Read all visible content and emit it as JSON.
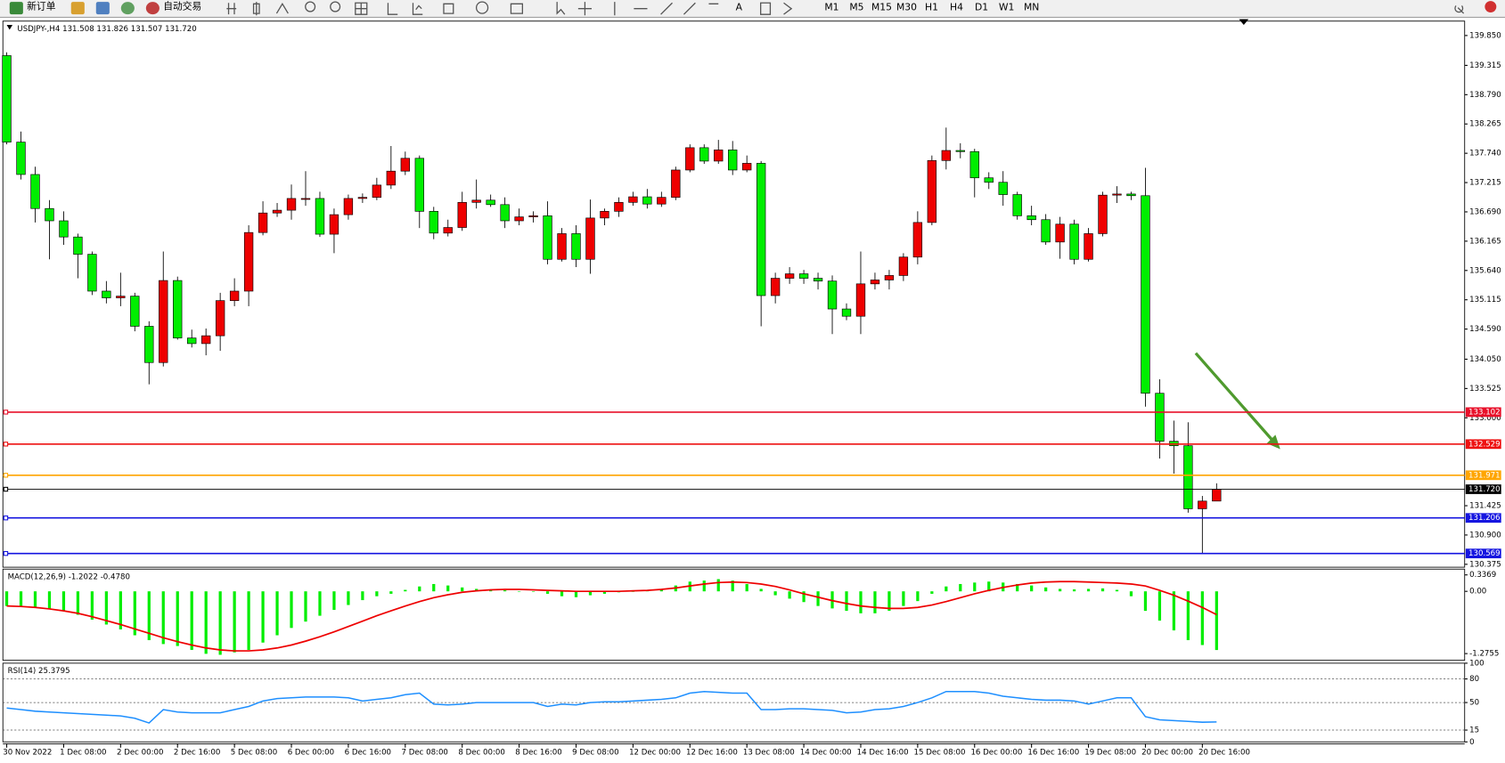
{
  "toolbar": {
    "new_order": "新订单",
    "auto_trading": "自动交易",
    "timeframes": [
      "M1",
      "M5",
      "M15",
      "M30",
      "H1",
      "H4",
      "D1",
      "W1",
      "MN"
    ]
  },
  "chart_data": [
    {
      "type": "candlestick",
      "title": "USDJPY-,H4  131.508 131.826 131.507 131.720",
      "categories": [
        "30 Nov 2022",
        null,
        null,
        null,
        "1 Dec 08:00",
        null,
        null,
        null,
        "2 Dec 00:00",
        null,
        null,
        null,
        "2 Dec 16:00",
        null,
        null,
        null,
        "5 Dec 08:00",
        null,
        null,
        null,
        "6 Dec 00:00",
        null,
        null,
        null,
        "6 Dec 16:00",
        null,
        null,
        null,
        "7 Dec 08:00",
        null,
        null,
        null,
        "8 Dec 00:00",
        null,
        null,
        null,
        "8 Dec 16:00",
        null,
        null,
        null,
        "9 Dec 08:00",
        null,
        null,
        null,
        "12 Dec 00:00",
        null,
        null,
        null,
        "12 Dec 16:00",
        null,
        null,
        null,
        "13 Dec 08:00",
        null,
        null,
        null,
        "14 Dec 00:00",
        null,
        null,
        null,
        "14 Dec 16:00",
        null,
        null,
        null,
        "15 Dec 08:00",
        null,
        null,
        null,
        "16 Dec 00:00",
        null,
        null,
        null,
        "16 Dec 16:00",
        null,
        null,
        null,
        "19 Dec 08:00",
        null,
        null,
        null,
        "20 Dec 00:00",
        null,
        null,
        null,
        "20 Dec 16:00",
        null
      ],
      "open": [
        139.49,
        137.94,
        137.36,
        136.75,
        136.53,
        136.24,
        135.93,
        135.27,
        135.15,
        135.18,
        134.64,
        133.99,
        135.46,
        134.43,
        134.33,
        134.47,
        135.1,
        135.27,
        136.32,
        136.67,
        136.72,
        136.93,
        136.93,
        136.29,
        136.64,
        136.93,
        136.95,
        137.17,
        137.42,
        137.65,
        136.7,
        136.31,
        136.41,
        136.86,
        136.9,
        136.82,
        136.53,
        136.6,
        136.62,
        135.84,
        136.3,
        135.84,
        136.58,
        136.7,
        136.86,
        136.96,
        136.83,
        136.95,
        137.44,
        137.84,
        137.6,
        137.8,
        137.44,
        137.56,
        135.19,
        135.5,
        135.58,
        135.5,
        135.45,
        134.95,
        134.82,
        135.4,
        135.47,
        135.55,
        135.88,
        136.5,
        137.61,
        137.79,
        137.77,
        137.3,
        137.22,
        137.0,
        136.62,
        136.55,
        136.15,
        136.47,
        135.84,
        136.3,
        136.99,
        137.01,
        136.98,
        133.44,
        132.58,
        132.5,
        131.37,
        131.508
      ],
      "high": [
        139.55,
        138.13,
        137.5,
        136.9,
        136.7,
        136.3,
        135.98,
        135.45,
        135.6,
        135.24,
        134.73,
        135.98,
        135.53,
        134.58,
        134.6,
        135.24,
        135.5,
        136.45,
        136.88,
        136.85,
        137.18,
        137.42,
        137.05,
        136.75,
        137.0,
        137.02,
        137.3,
        137.87,
        137.77,
        137.7,
        136.78,
        136.55,
        137.05,
        137.27,
        137.0,
        136.95,
        136.75,
        136.7,
        136.88,
        136.4,
        136.45,
        136.91,
        136.75,
        136.95,
        137.05,
        137.1,
        137.05,
        137.5,
        137.9,
        137.9,
        137.98,
        137.96,
        137.7,
        137.6,
        135.6,
        135.7,
        135.65,
        135.6,
        135.55,
        135.05,
        135.98,
        135.6,
        135.65,
        135.95,
        136.7,
        137.7,
        138.2,
        137.92,
        137.82,
        137.4,
        137.42,
        137.05,
        136.8,
        136.65,
        136.6,
        136.55,
        136.4,
        137.05,
        137.15,
        137.05,
        137.48,
        133.69,
        132.95,
        132.92,
        131.6,
        131.826
      ],
      "low": [
        137.9,
        137.27,
        136.5,
        135.84,
        136.1,
        135.5,
        135.2,
        135.05,
        135.0,
        134.55,
        133.6,
        133.92,
        134.4,
        134.26,
        134.12,
        134.2,
        135.0,
        135.0,
        136.27,
        136.6,
        136.55,
        136.8,
        136.24,
        135.95,
        136.55,
        136.85,
        136.9,
        137.1,
        137.35,
        136.4,
        136.2,
        136.25,
        136.35,
        136.75,
        136.78,
        136.4,
        136.45,
        136.5,
        135.75,
        135.8,
        135.7,
        135.58,
        136.45,
        136.6,
        136.8,
        136.75,
        136.78,
        136.9,
        137.4,
        137.55,
        137.55,
        137.35,
        137.4,
        134.64,
        135.05,
        135.4,
        135.4,
        135.3,
        134.5,
        134.75,
        134.5,
        135.3,
        135.3,
        135.45,
        135.75,
        136.45,
        137.45,
        137.65,
        136.95,
        137.1,
        136.8,
        136.55,
        136.45,
        136.1,
        135.85,
        135.75,
        135.8,
        136.25,
        136.85,
        136.9,
        133.2,
        132.27,
        132.0,
        131.3,
        130.57,
        131.507
      ],
      "close": [
        137.94,
        137.36,
        136.75,
        136.53,
        136.24,
        135.93,
        135.27,
        135.15,
        135.18,
        134.64,
        133.99,
        135.46,
        134.43,
        134.33,
        134.47,
        135.1,
        135.27,
        136.32,
        136.67,
        136.72,
        136.93,
        136.93,
        136.29,
        136.64,
        136.93,
        136.95,
        137.17,
        137.42,
        137.65,
        136.7,
        136.31,
        136.41,
        136.86,
        136.9,
        136.82,
        136.53,
        136.6,
        136.62,
        135.84,
        136.3,
        135.84,
        136.58,
        136.7,
        136.86,
        136.96,
        136.83,
        136.95,
        137.44,
        137.84,
        137.6,
        137.8,
        137.44,
        137.56,
        135.19,
        135.5,
        135.58,
        135.5,
        135.45,
        134.95,
        134.82,
        135.4,
        135.47,
        135.55,
        135.88,
        136.5,
        137.61,
        137.79,
        137.77,
        137.3,
        137.22,
        137.0,
        136.62,
        136.55,
        136.15,
        136.47,
        135.84,
        136.3,
        136.99,
        137.01,
        136.98,
        133.44,
        132.58,
        132.5,
        131.37,
        131.508,
        131.72
      ],
      "up_color": "#ee0000",
      "down_color": "#00ee00",
      "ylim": [
        130.323,
        140.108
      ],
      "yticks": [
        {
          "value": 139.85,
          "label": "139.850"
        },
        139.315,
        {
          "value": 138.79,
          "label": "138.790"
        },
        138.265,
        {
          "value": 137.74,
          "label": "137.740"
        },
        137.215,
        {
          "value": 136.69,
          "label": "136.690"
        },
        136.165,
        {
          "value": 135.64,
          "label": "135.640"
        },
        135.115,
        {
          "value": 134.59,
          "label": "134.590"
        },
        {
          "value": 134.05,
          "label": "134.050"
        },
        133.525,
        {
          "value": 133,
          "label": "133.000"
        },
        131.425,
        {
          "value": 130.9,
          "label": "130.900"
        },
        130.375
      ],
      "levels": [
        {
          "value": 133.102,
          "color": "#e8102a"
        },
        {
          "value": 132.529,
          "color": "#ee1111"
        },
        {
          "value": 131.971,
          "color": "#ffa500"
        },
        {
          "value": 131.72,
          "label": "131.720",
          "color": "#000000"
        },
        {
          "value": 131.206,
          "color": "#1515e0"
        },
        {
          "value": 130.569,
          "color": "#1515e0"
        }
      ]
    },
    {
      "type": "macd",
      "title": "MACD(12,26,9) -1.2022 -0.4780",
      "series": [
        {
          "color": "#00ee00",
          "values": [
            -0.3,
            -0.32,
            -0.33,
            -0.35,
            -0.4,
            -0.48,
            -0.58,
            -0.68,
            -0.78,
            -0.9,
            -1.0,
            -1.08,
            -1.12,
            -1.2,
            -1.28,
            -1.3,
            -1.25,
            -1.2,
            -1.05,
            -0.9,
            -0.75,
            -0.62,
            -0.5,
            -0.38,
            -0.28,
            -0.18,
            -0.1,
            -0.05,
            0.03,
            0.1,
            0.15,
            0.12,
            0.08,
            0.05,
            0.03,
            0.02,
            0.0,
            -0.01,
            -0.05,
            -0.1,
            -0.12,
            -0.08,
            -0.05,
            -0.02,
            0.0,
            0.02,
            0.05,
            0.12,
            0.2,
            0.22,
            0.25,
            0.22,
            0.15,
            0.05,
            -0.08,
            -0.15,
            -0.22,
            -0.3,
            -0.35,
            -0.4,
            -0.45,
            -0.45,
            -0.4,
            -0.3,
            -0.2,
            -0.05,
            0.1,
            0.15,
            0.18,
            0.2,
            0.18,
            0.15,
            0.12,
            0.08,
            0.05,
            0.04,
            0.05,
            0.06,
            0.03,
            -0.1,
            -0.4,
            -0.6,
            -0.8,
            -1.0,
            -1.1,
            -1.2022
          ]
        },
        {
          "color": "#ee0000",
          "values": [
            -0.3,
            -0.31,
            -0.33,
            -0.36,
            -0.4,
            -0.45,
            -0.52,
            -0.6,
            -0.68,
            -0.77,
            -0.86,
            -0.95,
            -1.03,
            -1.1,
            -1.16,
            -1.2,
            -1.22,
            -1.22,
            -1.2,
            -1.16,
            -1.1,
            -1.02,
            -0.93,
            -0.83,
            -0.72,
            -0.61,
            -0.5,
            -0.4,
            -0.3,
            -0.21,
            -0.13,
            -0.07,
            -0.02,
            0.01,
            0.03,
            0.04,
            0.04,
            0.03,
            0.02,
            0.01,
            0.0,
            0.0,
            0.0,
            0.0,
            0.01,
            0.02,
            0.04,
            0.07,
            0.11,
            0.15,
            0.18,
            0.19,
            0.18,
            0.15,
            0.1,
            0.03,
            -0.05,
            -0.12,
            -0.19,
            -0.25,
            -0.3,
            -0.33,
            -0.35,
            -0.35,
            -0.33,
            -0.28,
            -0.21,
            -0.13,
            -0.05,
            0.02,
            0.08,
            0.13,
            0.17,
            0.19,
            0.2,
            0.2,
            0.19,
            0.18,
            0.17,
            0.15,
            0.11,
            0.02,
            -0.08,
            -0.2,
            -0.33,
            -0.478
          ]
        }
      ],
      "ylim": [
        -1.413,
        0.455
      ],
      "yticks": [
        0.3369,
        {
          "value": 0,
          "label": "0.00"
        },
        -1.2755
      ]
    },
    {
      "type": "line",
      "title": "RSI(14) 25.3795",
      "color": "#1e8fff",
      "values": [
        43,
        41,
        39,
        38,
        37,
        36,
        35,
        34,
        33,
        30,
        24,
        41,
        38,
        37,
        37,
        37,
        41,
        45,
        52,
        55,
        56,
        57,
        57,
        57,
        56,
        52,
        54,
        56,
        60,
        62,
        48,
        47,
        48,
        50,
        50,
        50,
        50,
        50,
        45,
        48,
        47,
        50,
        51,
        51,
        52,
        53,
        54,
        56,
        62,
        64,
        63,
        62,
        62,
        41,
        41,
        42,
        42,
        41,
        40,
        37,
        38,
        41,
        42,
        45,
        50,
        56,
        64,
        64,
        64,
        62,
        58,
        56,
        54,
        53,
        53,
        52,
        48,
        52,
        56,
        56,
        32,
        28,
        27,
        26,
        25,
        25.3795
      ],
      "ylim": [
        0,
        100
      ],
      "yticks": [
        100,
        80,
        50,
        15,
        0
      ],
      "levels": [
        80,
        50,
        15
      ]
    }
  ]
}
